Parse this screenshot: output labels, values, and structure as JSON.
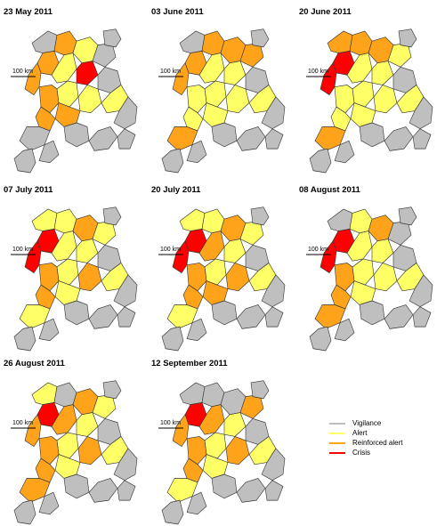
{
  "colors": {
    "vigilance": "#bfbfbf",
    "alert": "#ffff66",
    "reinforced": "#ffa31a",
    "crisis": "#ff0000",
    "border": "#333333"
  },
  "scale_label": "100 km",
  "panels": [
    {
      "date": "23 May 2011"
    },
    {
      "date": "03 June 2011"
    },
    {
      "date": "20 June 2011"
    },
    {
      "date": "07 July 2011"
    },
    {
      "date": "20 July 2011"
    },
    {
      "date": "08 August 2011"
    },
    {
      "date": "26 August 2011"
    },
    {
      "date": "12 September 2011"
    }
  ],
  "legend": [
    {
      "label": "Vigilance",
      "color": "#bfbfbf"
    },
    {
      "label": "Alert",
      "color": "#ffff66"
    },
    {
      "label": "Reinforced alert",
      "color": "#ffa31a"
    },
    {
      "label": "Crisis",
      "color": "#ff0000"
    }
  ],
  "status_matrix": [
    [
      "V",
      "O",
      "O",
      "Y",
      "V",
      "V",
      "O",
      "Y",
      "R",
      "Y",
      "O",
      "Y",
      "O",
      "O",
      "V",
      "Y",
      "V",
      "V",
      "V",
      "V",
      "V",
      "V",
      "V"
    ],
    [
      "V",
      "O",
      "O",
      "O",
      "O",
      "V",
      "O",
      "Y",
      "Y",
      "Y",
      "Y",
      "Y",
      "Y",
      "Y",
      "V",
      "Y",
      "O",
      "V",
      "V",
      "V",
      "V",
      "V",
      "V"
    ],
    [
      "O",
      "R",
      "O",
      "O",
      "Y",
      "V",
      "R",
      "Y",
      "Y",
      "Y",
      "Y",
      "Y",
      "Y",
      "Y",
      "V",
      "Y",
      "O",
      "V",
      "V",
      "V",
      "V",
      "V",
      "V"
    ],
    [
      "Y",
      "R",
      "Y",
      "O",
      "Y",
      "V",
      "R",
      "Y",
      "Y",
      "Y",
      "O",
      "O",
      "Y",
      "O",
      "V",
      "Y",
      "Y",
      "V",
      "V",
      "V",
      "V",
      "V",
      "V"
    ],
    [
      "Y",
      "R",
      "Y",
      "O",
      "Y",
      "V",
      "R",
      "O",
      "Y",
      "Y",
      "O",
      "O",
      "O",
      "O",
      "V",
      "Y",
      "Y",
      "V",
      "V",
      "V",
      "V",
      "V",
      "V"
    ],
    [
      "V",
      "R",
      "Y",
      "O",
      "V",
      "V",
      "R",
      "Y",
      "Y",
      "Y",
      "O",
      "Y",
      "Y",
      "O",
      "V",
      "Y",
      "O",
      "V",
      "V",
      "V",
      "V",
      "V",
      "V"
    ],
    [
      "Y",
      "R",
      "V",
      "O",
      "Y",
      "V",
      "O",
      "O",
      "Y",
      "Y",
      "O",
      "O",
      "Y",
      "O",
      "V",
      "Y",
      "O",
      "V",
      "V",
      "V",
      "V",
      "V",
      "V"
    ],
    [
      "V",
      "R",
      "V",
      "V",
      "O",
      "V",
      "O",
      "O",
      "Y",
      "Y",
      "O",
      "O",
      "Y",
      "O",
      "V",
      "Y",
      "Y",
      "V",
      "V",
      "V",
      "V",
      "V",
      "V"
    ]
  ]
}
